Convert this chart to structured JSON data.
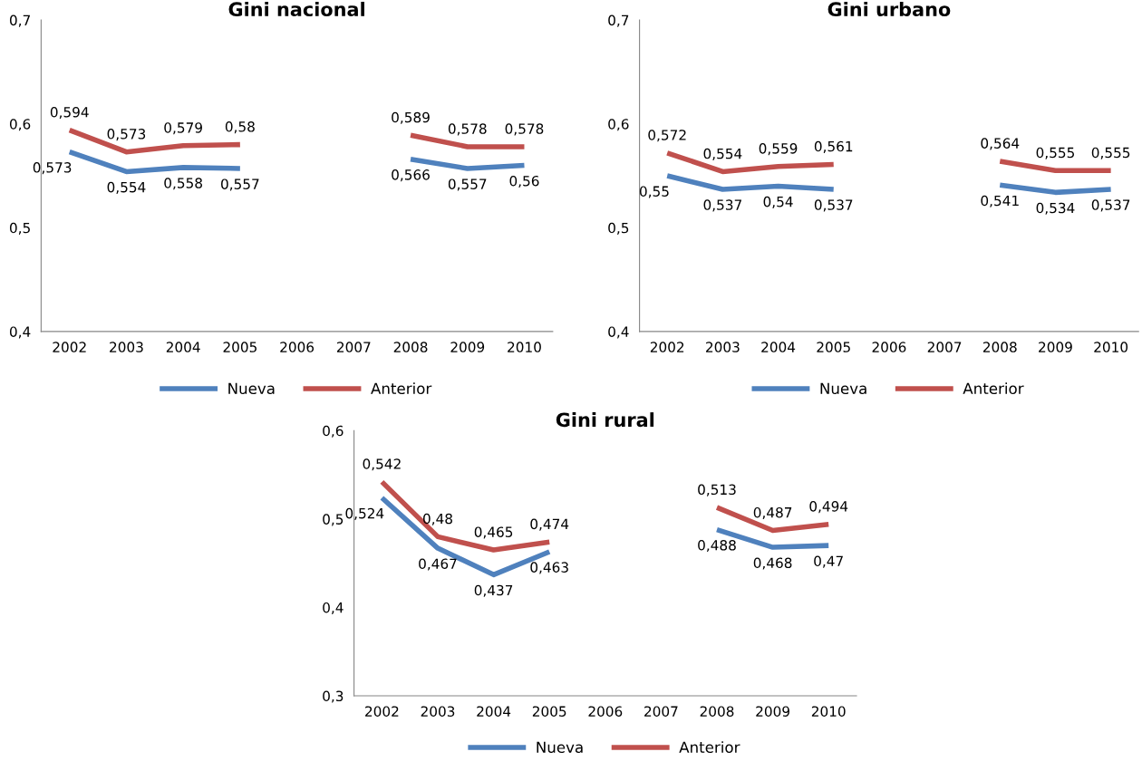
{
  "chart_data": [
    {
      "type": "line",
      "title": "Gini nacional",
      "categories": [
        "2002",
        "2003",
        "2004",
        "2005",
        "2006",
        "2007",
        "2008",
        "2009",
        "2010"
      ],
      "ylim": [
        0.4,
        0.7
      ],
      "yticks": [
        {
          "value": 0.4,
          "label": "0,4"
        },
        {
          "value": 0.5,
          "label": "0,5"
        },
        {
          "value": 0.6,
          "label": "0,6"
        },
        {
          "value": 0.7,
          "label": "0,7"
        }
      ],
      "legend": "bottom",
      "grid": false,
      "series": [
        {
          "name": "Nueva",
          "color": "#4f81bd",
          "values": [
            0.573,
            0.554,
            0.558,
            0.557,
            null,
            null,
            0.566,
            0.557,
            0.56
          ],
          "value_labels": [
            "0,573",
            "0,554",
            "0,558",
            "0,557",
            null,
            null,
            "0,566",
            "0,557",
            "0,56"
          ]
        },
        {
          "name": "Anterior",
          "color": "#c0504d",
          "values": [
            0.594,
            0.573,
            0.579,
            0.58,
            null,
            null,
            0.589,
            0.578,
            0.578
          ],
          "value_labels": [
            "0,594",
            "0,573",
            "0,579",
            "0,58",
            null,
            null,
            "0,589",
            "0,578",
            "0,578"
          ]
        }
      ]
    },
    {
      "type": "line",
      "title": "Gini urbano",
      "categories": [
        "2002",
        "2003",
        "2004",
        "2005",
        "2006",
        "2007",
        "2008",
        "2009",
        "2010"
      ],
      "ylim": [
        0.4,
        0.7
      ],
      "yticks": [
        {
          "value": 0.4,
          "label": "0,4"
        },
        {
          "value": 0.5,
          "label": "0,5"
        },
        {
          "value": 0.6,
          "label": "0,6"
        },
        {
          "value": 0.7,
          "label": "0,7"
        }
      ],
      "legend": "bottom",
      "grid": false,
      "series": [
        {
          "name": "Nueva",
          "color": "#4f81bd",
          "values": [
            0.55,
            0.537,
            0.54,
            0.537,
            null,
            null,
            0.541,
            0.534,
            0.537
          ],
          "value_labels": [
            "0,55",
            "0,537",
            "0,54",
            "0,537",
            null,
            null,
            "0,541",
            "0,534",
            "0,537"
          ]
        },
        {
          "name": "Anterior",
          "color": "#c0504d",
          "values": [
            0.572,
            0.554,
            0.559,
            0.561,
            null,
            null,
            0.564,
            0.555,
            0.555
          ],
          "value_labels": [
            "0,572",
            "0,554",
            "0,559",
            "0,561",
            null,
            null,
            "0,564",
            "0,555",
            "0,555"
          ]
        }
      ]
    },
    {
      "type": "line",
      "title": "Gini rural",
      "categories": [
        "2002",
        "2003",
        "2004",
        "2005",
        "2006",
        "2007",
        "2008",
        "2009",
        "2010"
      ],
      "ylim": [
        0.3,
        0.6
      ],
      "yticks": [
        {
          "value": 0.3,
          "label": "0,3"
        },
        {
          "value": 0.4,
          "label": "0,4"
        },
        {
          "value": 0.5,
          "label": "0,5"
        },
        {
          "value": 0.6,
          "label": "0,6"
        }
      ],
      "legend": "bottom",
      "grid": false,
      "series": [
        {
          "name": "Nueva",
          "color": "#4f81bd",
          "values": [
            0.524,
            0.467,
            0.437,
            0.463,
            null,
            null,
            0.488,
            0.468,
            0.47
          ],
          "value_labels": [
            "0,524",
            "0,467",
            "0,437",
            "0,463",
            null,
            null,
            "0,488",
            "0,468",
            "0,47"
          ]
        },
        {
          "name": "Anterior",
          "color": "#c0504d",
          "values": [
            0.542,
            0.48,
            0.465,
            0.474,
            null,
            null,
            0.513,
            0.487,
            0.494
          ],
          "value_labels": [
            "0,542",
            "0,48",
            "0,465",
            "0,474",
            null,
            null,
            "0,513",
            "0,487",
            "0,494"
          ]
        }
      ]
    }
  ]
}
